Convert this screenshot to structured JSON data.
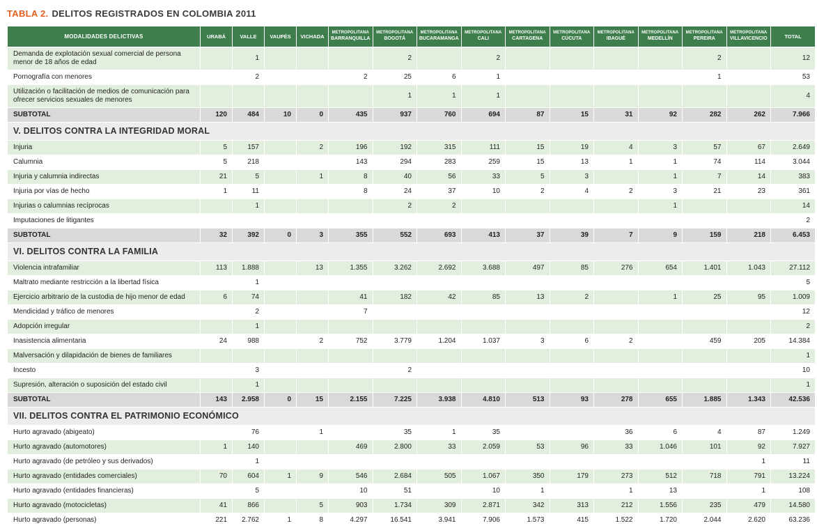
{
  "title": {
    "prefix": "TABLA 2.",
    "text": "DELITOS REGISTRADOS EN COLOMBIA 2011"
  },
  "colors": {
    "header_green": "#3e7e4c",
    "row_green": "#e3efde",
    "subtotal_gray": "#d9d9d9",
    "section_gray": "#ececec",
    "title_orange": "#e45f1f"
  },
  "table": {
    "first_col_header": "MODALIDADES DELICTIVAS",
    "columns": [
      {
        "group": "",
        "name": "URABÁ"
      },
      {
        "group": "",
        "name": "VALLE"
      },
      {
        "group": "",
        "name": "VAUPÉS"
      },
      {
        "group": "",
        "name": "VICHADA"
      },
      {
        "group": "METROPOLITANA",
        "name": "BARRANQUILLA"
      },
      {
        "group": "METROPOLITANA",
        "name": "BOGOTÁ"
      },
      {
        "group": "METROPOLITANA",
        "name": "BUCARAMANGA"
      },
      {
        "group": "METROPOLITANA",
        "name": "CALI"
      },
      {
        "group": "METROPOLITANA",
        "name": "CARTAGENA"
      },
      {
        "group": "METROPOLITANA",
        "name": "CÚCUTA"
      },
      {
        "group": "METROPOLITANA",
        "name": "IBAGUÉ"
      },
      {
        "group": "METROPOLITANA",
        "name": "MEDELLÍN"
      },
      {
        "group": "METROPOLITANA",
        "name": "PEREIRA"
      },
      {
        "group": "METROPOLITANA",
        "name": "VILLAVICENCIO"
      },
      {
        "group": "",
        "name": "TOTAL"
      }
    ],
    "sections": [
      {
        "rows": [
          {
            "label": "Demanda de explotación sexual comercial de persona menor de 18 años de edad",
            "values": [
              "",
              "1",
              "",
              "",
              "",
              "2",
              "",
              "2",
              "",
              "",
              "",
              "",
              "2",
              "",
              "12"
            ]
          },
          {
            "label": "Pornografía con menores",
            "values": [
              "",
              "2",
              "",
              "",
              "2",
              "25",
              "6",
              "1",
              "",
              "",
              "",
              "",
              "1",
              "",
              "53"
            ]
          },
          {
            "label": "Utilización o facilitación de medios de comunicación para ofrecer servicios sexuales de menores",
            "values": [
              "",
              "",
              "",
              "",
              "",
              "1",
              "1",
              "1",
              "",
              "",
              "",
              "",
              "",
              "",
              "4"
            ]
          },
          {
            "label": "SUBTOTAL",
            "subtotal": true,
            "values": [
              "120",
              "484",
              "10",
              "0",
              "435",
              "937",
              "760",
              "694",
              "87",
              "15",
              "31",
              "92",
              "282",
              "262",
              "7.966"
            ]
          }
        ]
      },
      {
        "heading": "V. DELITOS CONTRA LA INTEGRIDAD MORAL",
        "rows": [
          {
            "label": "Injuria",
            "values": [
              "5",
              "157",
              "",
              "2",
              "196",
              "192",
              "315",
              "111",
              "15",
              "19",
              "4",
              "3",
              "57",
              "67",
              "2.649"
            ]
          },
          {
            "label": "Calumnia",
            "values": [
              "5",
              "218",
              "",
              "",
              "143",
              "294",
              "283",
              "259",
              "15",
              "13",
              "1",
              "1",
              "74",
              "114",
              "3.044"
            ]
          },
          {
            "label": "Injuria y calumnia indirectas",
            "values": [
              "21",
              "5",
              "",
              "1",
              "8",
              "40",
              "56",
              "33",
              "5",
              "3",
              "",
              "1",
              "7",
              "14",
              "383"
            ]
          },
          {
            "label": "Injuria por vías de hecho",
            "values": [
              "1",
              "11",
              "",
              "",
              "8",
              "24",
              "37",
              "10",
              "2",
              "4",
              "2",
              "3",
              "21",
              "23",
              "361"
            ]
          },
          {
            "label": "Injurias o calumnias recíprocas",
            "values": [
              "",
              "1",
              "",
              "",
              "",
              "2",
              "2",
              "",
              "",
              "",
              "",
              "1",
              "",
              "",
              "14"
            ]
          },
          {
            "label": "Imputaciones de litigantes",
            "values": [
              "",
              "",
              "",
              "",
              "",
              "",
              "",
              "",
              "",
              "",
              "",
              "",
              "",
              "",
              "2"
            ]
          },
          {
            "label": "SUBTOTAL",
            "subtotal": true,
            "values": [
              "32",
              "392",
              "0",
              "3",
              "355",
              "552",
              "693",
              "413",
              "37",
              "39",
              "7",
              "9",
              "159",
              "218",
              "6.453"
            ]
          }
        ]
      },
      {
        "heading": "VI. DELITOS CONTRA LA FAMILIA",
        "rows": [
          {
            "label": "Violencia intrafamiliar",
            "values": [
              "113",
              "1.888",
              "",
              "13",
              "1.355",
              "3.262",
              "2.692",
              "3.688",
              "497",
              "85",
              "276",
              "654",
              "1.401",
              "1.043",
              "27.112"
            ]
          },
          {
            "label": "Maltrato mediante restricción a la libertad física",
            "values": [
              "",
              "1",
              "",
              "",
              "",
              "",
              "",
              "",
              "",
              "",
              "",
              "",
              "",
              "",
              "5"
            ]
          },
          {
            "label": "Ejercicio arbitrario de la custodia de hijo menor de edad",
            "values": [
              "6",
              "74",
              "",
              "",
              "41",
              "182",
              "42",
              "85",
              "13",
              "2",
              "",
              "1",
              "25",
              "95",
              "1.009"
            ]
          },
          {
            "label": "Mendicidad y tráfico de menores",
            "values": [
              "",
              "2",
              "",
              "",
              "7",
              "",
              "",
              "",
              "",
              "",
              "",
              "",
              "",
              "",
              "12"
            ]
          },
          {
            "label": "Adopción irregular",
            "values": [
              "",
              "1",
              "",
              "",
              "",
              "",
              "",
              "",
              "",
              "",
              "",
              "",
              "",
              "",
              "2"
            ]
          },
          {
            "label": "Inasistencia alimentaria",
            "values": [
              "24",
              "988",
              "",
              "2",
              "752",
              "3.779",
              "1.204",
              "1.037",
              "3",
              "6",
              "2",
              "",
              "459",
              "205",
              "14.384"
            ]
          },
          {
            "label": "Malversación y dilapidación de bienes de familiares",
            "values": [
              "",
              "",
              "",
              "",
              "",
              "",
              "",
              "",
              "",
              "",
              "",
              "",
              "",
              "",
              "1"
            ]
          },
          {
            "label": "Incesto",
            "values": [
              "",
              "3",
              "",
              "",
              "",
              "2",
              "",
              "",
              "",
              "",
              "",
              "",
              "",
              "",
              "10"
            ]
          },
          {
            "label": "Supresión, alteración o suposición del estado civil",
            "values": [
              "",
              "1",
              "",
              "",
              "",
              "",
              "",
              "",
              "",
              "",
              "",
              "",
              "",
              "",
              "1"
            ]
          },
          {
            "label": "SUBTOTAL",
            "subtotal": true,
            "values": [
              "143",
              "2.958",
              "0",
              "15",
              "2.155",
              "7.225",
              "3.938",
              "4.810",
              "513",
              "93",
              "278",
              "655",
              "1.885",
              "1.343",
              "42.536"
            ]
          }
        ]
      },
      {
        "heading": "VII. DELITOS CONTRA EL PATRIMONIO ECONÓMICO",
        "stripe_start": "white",
        "rows": [
          {
            "label": "Hurto agravado (abigeato)",
            "values": [
              "",
              "76",
              "",
              "1",
              "",
              "35",
              "1",
              "35",
              "",
              "",
              "36",
              "6",
              "4",
              "87",
              "1.249"
            ]
          },
          {
            "label": "Hurto agravado (automotores)",
            "values": [
              "1",
              "140",
              "",
              "",
              "469",
              "2.800",
              "33",
              "2.059",
              "53",
              "96",
              "33",
              "1.046",
              "101",
              "92",
              "7.927"
            ]
          },
          {
            "label": "Hurto agravado (de petróleo y sus derivados)",
            "values": [
              "",
              "1",
              "",
              "",
              "",
              "",
              "",
              "",
              "",
              "",
              "",
              "",
              "",
              "1",
              "11"
            ]
          },
          {
            "label": "Hurto agravado (entidades comerciales)",
            "values": [
              "70",
              "604",
              "1",
              "9",
              "546",
              "2.684",
              "505",
              "1.067",
              "350",
              "179",
              "273",
              "512",
              "718",
              "791",
              "13.224"
            ]
          },
          {
            "label": "Hurto agravado (entidades financieras)",
            "values": [
              "",
              "5",
              "",
              "",
              "10",
              "51",
              "",
              "10",
              "1",
              "",
              "1",
              "13",
              "",
              "1",
              "108"
            ]
          },
          {
            "label": "Hurto agravado (motocicletas)",
            "values": [
              "41",
              "866",
              "",
              "5",
              "903",
              "1.734",
              "309",
              "2.871",
              "342",
              "313",
              "212",
              "1.556",
              "235",
              "479",
              "14.580"
            ]
          },
          {
            "label": "Hurto agravado (personas)",
            "values": [
              "221",
              "2.762",
              "1",
              "8",
              "4.297",
              "16.541",
              "3.941",
              "7.906",
              "1.573",
              "415",
              "1.522",
              "1.720",
              "2.044",
              "2.620",
              "63.236"
            ]
          }
        ]
      }
    ]
  }
}
